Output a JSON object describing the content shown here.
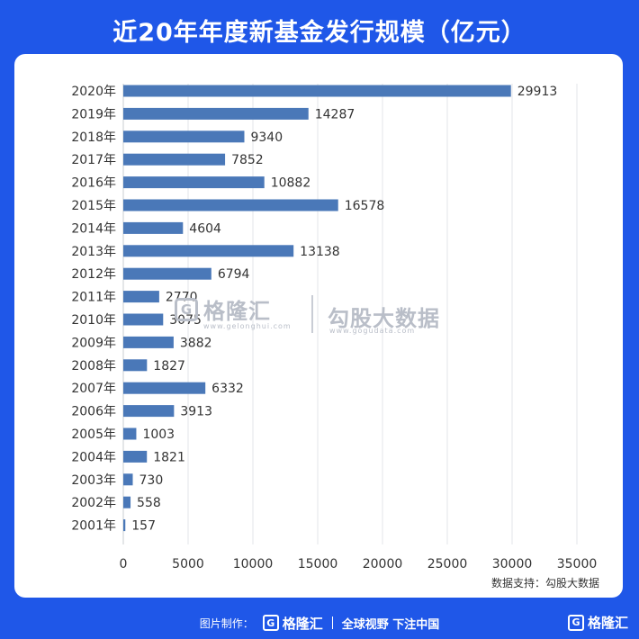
{
  "header": {
    "title": "近20年年度新基金发行规模（亿元）"
  },
  "chart_data": {
    "type": "bar",
    "orientation": "horizontal",
    "title": "近20年年度新基金发行规模（亿元）",
    "categories": [
      "2020年",
      "2019年",
      "2018年",
      "2017年",
      "2016年",
      "2015年",
      "2014年",
      "2013年",
      "2012年",
      "2011年",
      "2010年",
      "2009年",
      "2008年",
      "2007年",
      "2006年",
      "2005年",
      "2004年",
      "2003年",
      "2002年",
      "2001年"
    ],
    "values": [
      29913,
      14287,
      9340,
      7852,
      10882,
      16578,
      4604,
      13138,
      6794,
      2770,
      3075,
      3882,
      1827,
      6332,
      3913,
      1003,
      1821,
      730,
      558,
      157
    ],
    "xlim": [
      0,
      35000
    ],
    "x_ticks": [
      "0",
      "5000",
      "10000",
      "15000",
      "20000",
      "25000",
      "30000",
      "35000"
    ],
    "bar_color": "#4a78b8",
    "grid": true
  },
  "watermark": {
    "brand1": "格隆汇",
    "brand1_url": "www.gelonghui.com",
    "brand2": "勾股大数据",
    "brand2_url": "www.gogudata.com"
  },
  "source_note": "数据支持：勾股大数据",
  "footer": {
    "prefix": "图片制作：",
    "brand": "格隆汇",
    "slogan": "全球视野 下注中国",
    "logo_glyph": "G"
  },
  "colors": {
    "background": "#1f57e8",
    "card": "#ffffff",
    "bar": "#4a78b8"
  }
}
